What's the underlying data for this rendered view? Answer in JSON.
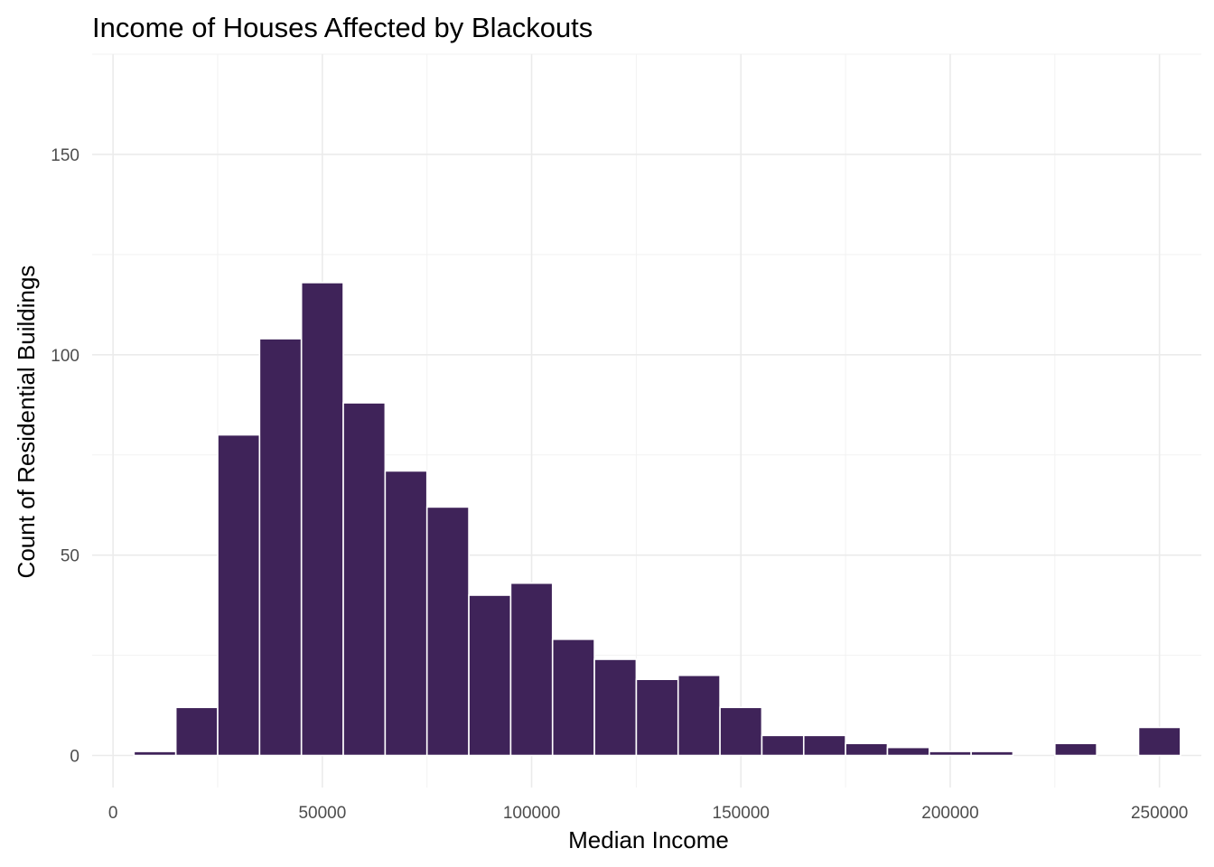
{
  "chart_data": {
    "type": "bar",
    "title": "Income of Houses Affected by Blackouts",
    "xlabel": "Median Income",
    "ylabel": "Count of Residential Buildings",
    "bin_width": 10000,
    "bins": [
      {
        "x0": 5000,
        "x1": 15000,
        "count": 1
      },
      {
        "x0": 15000,
        "x1": 25000,
        "count": 12
      },
      {
        "x0": 25000,
        "x1": 35000,
        "count": 80
      },
      {
        "x0": 35000,
        "x1": 45000,
        "count": 104
      },
      {
        "x0": 45000,
        "x1": 55000,
        "count": 118
      },
      {
        "x0": 55000,
        "x1": 65000,
        "count": 88
      },
      {
        "x0": 65000,
        "x1": 75000,
        "count": 71
      },
      {
        "x0": 75000,
        "x1": 85000,
        "count": 62
      },
      {
        "x0": 85000,
        "x1": 95000,
        "count": 40
      },
      {
        "x0": 95000,
        "x1": 105000,
        "count": 43
      },
      {
        "x0": 105000,
        "x1": 115000,
        "count": 29
      },
      {
        "x0": 115000,
        "x1": 125000,
        "count": 24
      },
      {
        "x0": 125000,
        "x1": 135000,
        "count": 19
      },
      {
        "x0": 135000,
        "x1": 145000,
        "count": 20
      },
      {
        "x0": 145000,
        "x1": 155000,
        "count": 12
      },
      {
        "x0": 155000,
        "x1": 165000,
        "count": 5
      },
      {
        "x0": 165000,
        "x1": 175000,
        "count": 5
      },
      {
        "x0": 175000,
        "x1": 185000,
        "count": 3
      },
      {
        "x0": 185000,
        "x1": 195000,
        "count": 2
      },
      {
        "x0": 195000,
        "x1": 205000,
        "count": 1
      },
      {
        "x0": 205000,
        "x1": 215000,
        "count": 1
      },
      {
        "x0": 215000,
        "x1": 225000,
        "count": 0
      },
      {
        "x0": 225000,
        "x1": 235000,
        "count": 3
      },
      {
        "x0": 235000,
        "x1": 245000,
        "count": 0
      },
      {
        "x0": 245000,
        "x1": 255000,
        "count": 7
      }
    ],
    "xlim": [
      -5000,
      260000
    ],
    "ylim": [
      -8,
      175
    ],
    "x_ticks": [
      0,
      50000,
      100000,
      150000,
      200000,
      250000
    ],
    "x_tick_labels": [
      "0",
      "50000",
      "100000",
      "150000",
      "200000",
      "250000"
    ],
    "y_ticks": [
      0,
      50,
      100,
      150
    ],
    "y_tick_labels": [
      "0",
      "50",
      "100",
      "150"
    ],
    "grid": true,
    "legend": "none",
    "colors": {
      "bar_fill": "#3f2359",
      "bar_outline": "#ffffff",
      "grid_major": "#ebebeb",
      "grid_minor": "#f2f2f2"
    }
  }
}
